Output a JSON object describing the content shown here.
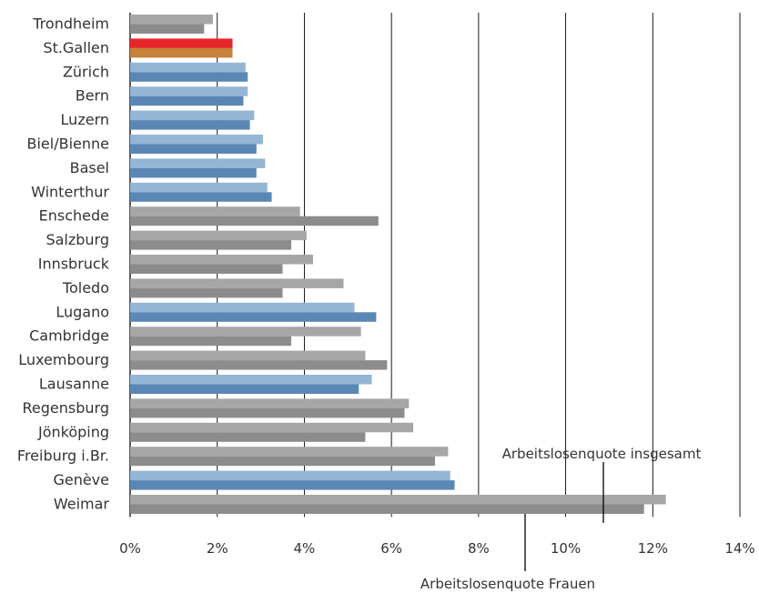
{
  "chart_data": {
    "type": "bar",
    "orientation": "horizontal",
    "categories": [
      "Trondheim",
      "St.Gallen",
      "Zürich",
      "Bern",
      "Luzern",
      "Biel/Bienne",
      "Basel",
      "Winterthur",
      "Enschede",
      "Salzburg",
      "Innsbruck",
      "Toledo",
      "Lugano",
      "Cambridge",
      "Luxembourg",
      "Lausanne",
      "Regensburg",
      "Jönköping",
      "Freiburg i.Br.",
      "Genève",
      "Weimar"
    ],
    "series": [
      {
        "values": [
          1.9,
          2.35,
          2.65,
          2.7,
          2.85,
          3.05,
          3.1,
          3.15,
          3.9,
          4.05,
          4.2,
          4.9,
          5.15,
          5.3,
          5.4,
          5.55,
          6.4,
          6.5,
          7.3,
          7.35,
          12.3
        ]
      },
      {
        "values": [
          1.7,
          2.35,
          2.7,
          2.6,
          2.75,
          2.9,
          2.9,
          3.25,
          5.7,
          3.7,
          3.5,
          3.5,
          5.65,
          3.7,
          5.9,
          5.25,
          6.3,
          5.4,
          7.0,
          7.45,
          11.8
        ]
      }
    ],
    "category_type": [
      "other",
      "stgallen",
      "swiss",
      "swiss",
      "swiss",
      "swiss",
      "swiss",
      "swiss",
      "other",
      "other",
      "other",
      "other",
      "swiss",
      "other",
      "other",
      "swiss",
      "other",
      "other",
      "other",
      "swiss",
      "other"
    ],
    "colors": {
      "other": [
        "#a6a6a6",
        "#8c8c8c"
      ],
      "stgallen": [
        "#e8262a",
        "#c8823a"
      ],
      "swiss": [
        "#94b6d4",
        "#5b87b4"
      ]
    },
    "xlim": [
      0,
      14
    ],
    "xticks": [
      "0%",
      "2%",
      "4%",
      "6%",
      "8%",
      "10%",
      "12%",
      "14%"
    ],
    "grid": true,
    "annotations": {
      "top": "Arbeitslosenquote insgesamt",
      "bottom": "Arbeitslosenquote Frauen"
    }
  }
}
